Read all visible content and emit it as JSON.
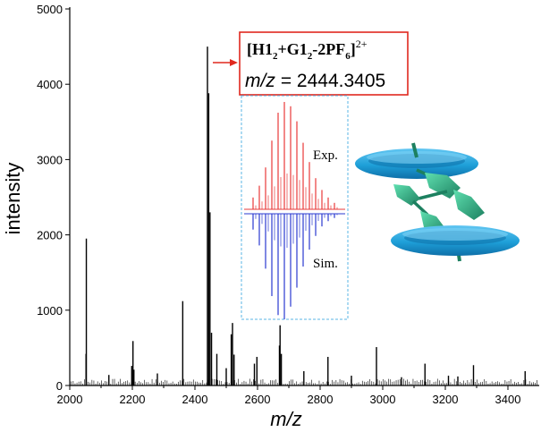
{
  "chart_data": {
    "type": "line",
    "title": "",
    "xlabel": "m/z",
    "ylabel": "intensity",
    "xlim": [
      2000,
      3500
    ],
    "ylim": [
      0,
      5000
    ],
    "x_ticks": [
      2000,
      2200,
      2400,
      2600,
      2800,
      3000,
      3200,
      3400
    ],
    "y_ticks": [
      0,
      1000,
      2000,
      3000,
      4000,
      5000
    ],
    "grid": false,
    "series": [
      {
        "name": "mass spectrum",
        "peaks": [
          {
            "x": 2053,
            "y": 1950
          },
          {
            "x": 2052,
            "y": 420
          },
          {
            "x": 2125,
            "y": 140
          },
          {
            "x": 2198,
            "y": 260
          },
          {
            "x": 2202,
            "y": 590
          },
          {
            "x": 2205,
            "y": 210
          },
          {
            "x": 2280,
            "y": 160
          },
          {
            "x": 2361,
            "y": 1120
          },
          {
            "x": 2440,
            "y": 4500
          },
          {
            "x": 2444,
            "y": 3880
          },
          {
            "x": 2448,
            "y": 2300
          },
          {
            "x": 2453,
            "y": 700
          },
          {
            "x": 2470,
            "y": 420
          },
          {
            "x": 2500,
            "y": 230
          },
          {
            "x": 2516,
            "y": 680
          },
          {
            "x": 2520,
            "y": 830
          },
          {
            "x": 2525,
            "y": 410
          },
          {
            "x": 2590,
            "y": 290
          },
          {
            "x": 2598,
            "y": 380
          },
          {
            "x": 2670,
            "y": 530
          },
          {
            "x": 2672,
            "y": 800
          },
          {
            "x": 2676,
            "y": 420
          },
          {
            "x": 2748,
            "y": 190
          },
          {
            "x": 2825,
            "y": 380
          },
          {
            "x": 2900,
            "y": 130
          },
          {
            "x": 2980,
            "y": 510
          },
          {
            "x": 3060,
            "y": 110
          },
          {
            "x": 3135,
            "y": 290
          },
          {
            "x": 3210,
            "y": 130
          },
          {
            "x": 3240,
            "y": 120
          },
          {
            "x": 3290,
            "y": 270
          },
          {
            "x": 3455,
            "y": 190
          }
        ]
      }
    ],
    "annotations": {
      "formula": {
        "bracket_open": "[H1",
        "sub1": "2",
        "plus_g1": "+G1",
        "sub2": "2",
        "minus_pf": "-2PF",
        "sub3": "6",
        "bracket_close": "]",
        "charge": "2+"
      },
      "mz_label": "m/z",
      "mz_value": "= 2444.3405",
      "inset_exp_label": "Exp.",
      "inset_sim_label": "Sim."
    },
    "colors": {
      "axis": "#000000",
      "spectrum": "#000000",
      "box_border": "#e0281e",
      "arrow": "#e0281e",
      "exp_trace": "#e83a3a",
      "sim_trace": "#2a3ad0",
      "inset_border": "#5ab6e6",
      "ring": "#1e9fd8",
      "ring_dark": "#0f6fa8",
      "guest": "#2fb886",
      "guest_dark": "#1d8060"
    },
    "inset": {
      "exp_peaks": [
        110,
        220,
        390,
        640,
        900,
        1000,
        960,
        820,
        620,
        440,
        290,
        180,
        110,
        60
      ],
      "sim_peaks": [
        150,
        300,
        520,
        780,
        960,
        1000,
        880,
        700,
        500,
        340,
        210,
        120,
        70,
        40
      ],
      "value_scale": 1000
    }
  }
}
